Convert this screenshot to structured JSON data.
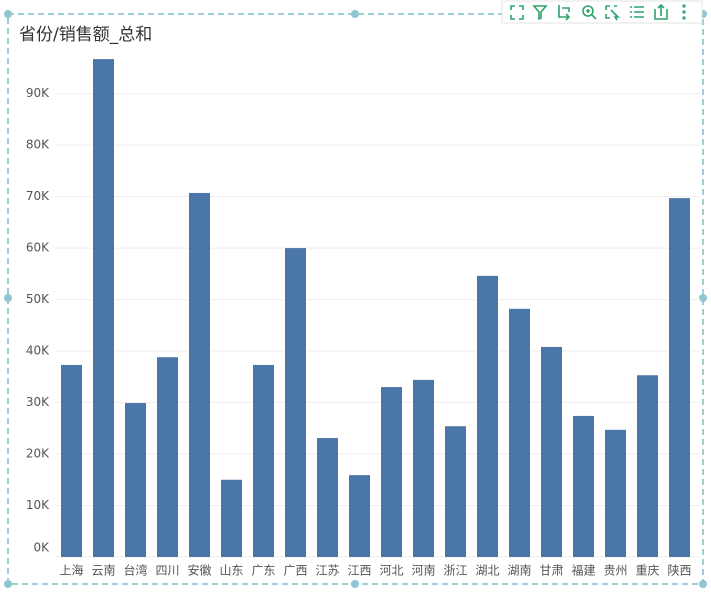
{
  "chart_data": {
    "type": "bar",
    "title": "省份/销售额_总和",
    "categories": [
      "上海",
      "云南",
      "台湾",
      "四川",
      "安徽",
      "山东",
      "广东",
      "广西",
      "江苏",
      "江西",
      "河北",
      "河南",
      "浙江",
      "湖北",
      "湖南",
      "甘肃",
      "福建",
      "贵州",
      "重庆",
      "陕西"
    ],
    "values": [
      37300,
      96700,
      29900,
      38800,
      70700,
      15000,
      37300,
      60000,
      23100,
      15900,
      33000,
      34400,
      25400,
      54600,
      48200,
      40800,
      27400,
      24700,
      35300,
      69700
    ],
    "color": "#4a76a8",
    "ylim": [
      0,
      97500
    ],
    "yticks": [
      {
        "value": 0,
        "label": "0K"
      },
      {
        "value": 10000,
        "label": "10K"
      },
      {
        "value": 20000,
        "label": "20K"
      },
      {
        "value": 30000,
        "label": "30K"
      },
      {
        "value": 40000,
        "label": "40K"
      },
      {
        "value": 50000,
        "label": "50K"
      },
      {
        "value": 60000,
        "label": "60K"
      },
      {
        "value": 70000,
        "label": "70K"
      },
      {
        "value": 80000,
        "label": "80K"
      },
      {
        "value": 90000,
        "label": "90K"
      }
    ],
    "grid": true
  }
}
